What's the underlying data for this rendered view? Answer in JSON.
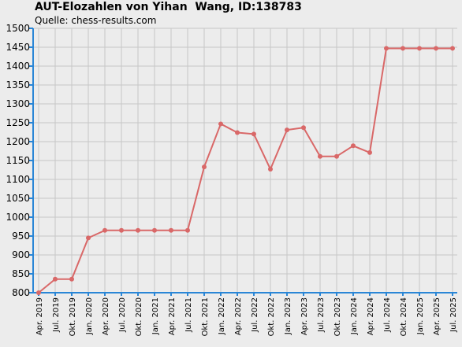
{
  "chart_data": {
    "type": "line",
    "title": "AUT-Elozahlen von Yihan  Wang, ID:138783",
    "subtitle": "Quelle: chess-results.com",
    "xlabel": "",
    "ylabel": "",
    "ylim": [
      800,
      1500
    ],
    "y_ticks": [
      800,
      850,
      900,
      950,
      1000,
      1050,
      1100,
      1150,
      1200,
      1250,
      1300,
      1350,
      1400,
      1450,
      1500
    ],
    "grid": true,
    "line_color": "#d96868",
    "axis_color": "#2a86d6",
    "categories": [
      "Apr. 2019",
      "Jul. 2019",
      "Okt. 2019",
      "Jan. 2020",
      "Apr. 2020",
      "Jul. 2020",
      "Okt. 2020",
      "Jan. 2021",
      "Apr. 2021",
      "Jul. 2021",
      "Okt. 2021",
      "Jan. 2022",
      "Apr. 2022",
      "Jul. 2022",
      "Okt. 2022",
      "Jan. 2023",
      "Apr. 2023",
      "Jul. 2023",
      "Okt. 2023",
      "Jan. 2024",
      "Apr. 2024",
      "Jul. 2024",
      "Okt. 2024",
      "Jan. 2025",
      "Apr. 2025",
      "Jul. 2025"
    ],
    "series": [
      {
        "values": [
          800,
          836,
          836,
          945,
          965,
          965,
          965,
          965,
          965,
          965,
          1133,
          1247,
          1224,
          1220,
          1127,
          1231,
          1237,
          1161,
          1161,
          1189,
          1171,
          1447,
          1447,
          1447,
          1447,
          1447
        ]
      }
    ]
  }
}
